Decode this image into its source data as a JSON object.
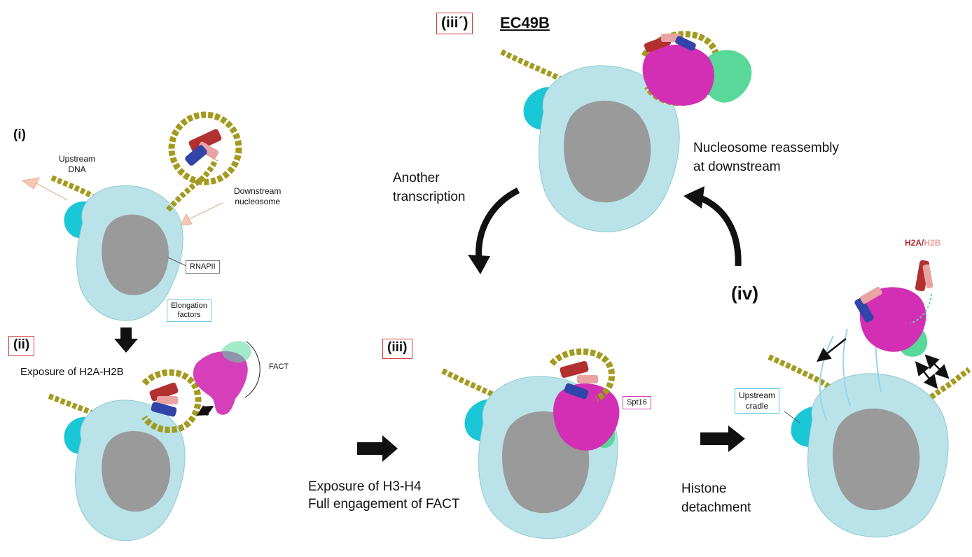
{
  "panels": {
    "i": {
      "label": "(i)"
    },
    "ii": {
      "label": "(ii)",
      "caption": "Exposure of H2A-H2B"
    },
    "iii": {
      "label": "(iii)",
      "caption_line1": "Exposure of H3-H4",
      "caption_line2": "Full engagement of FACT"
    },
    "iii_prime": {
      "label": "(iii´)",
      "name": "EC49B"
    },
    "iv": {
      "label": "(iv)",
      "caption_line1": "Histone",
      "caption_line2": "detachment"
    }
  },
  "labels": {
    "upstream_dna_1": "Upstream",
    "upstream_dna_2": "DNA",
    "downstream_nucleosome_1": "Downstream",
    "downstream_nucleosome_2": "nucleosome",
    "rnapii": "RNAPII",
    "elongation_factors_1": "Elongation",
    "elongation_factors_2": "factors",
    "fact": "FACT",
    "spt16": "Spt16",
    "upstream_cradle_1": "Upstream",
    "upstream_cradle_2": "cradle",
    "h2a": "H2A",
    "slash": "/",
    "h2b": "H2B"
  },
  "cycle": {
    "another_transcription_1": "Another",
    "another_transcription_2": "transcription",
    "reassembly_1": "Nucleosome reassembly",
    "reassembly_2": "at downstream"
  },
  "colors": {
    "polymerase_light": "#b9e3e8",
    "polymerase_gray": "#9a9a9a",
    "elongation_cyan": "#19c7d6",
    "dna_olive": "#a39a1e",
    "fact_magenta": "#d22fb4",
    "fact_green": "#58d99a",
    "histone_red": "#b23030",
    "histone_pink": "#e9a3a3",
    "histone_blue": "#3145a8",
    "label_box_red": "#d23b3b",
    "upstream_arrow": "#f7c9b4"
  }
}
